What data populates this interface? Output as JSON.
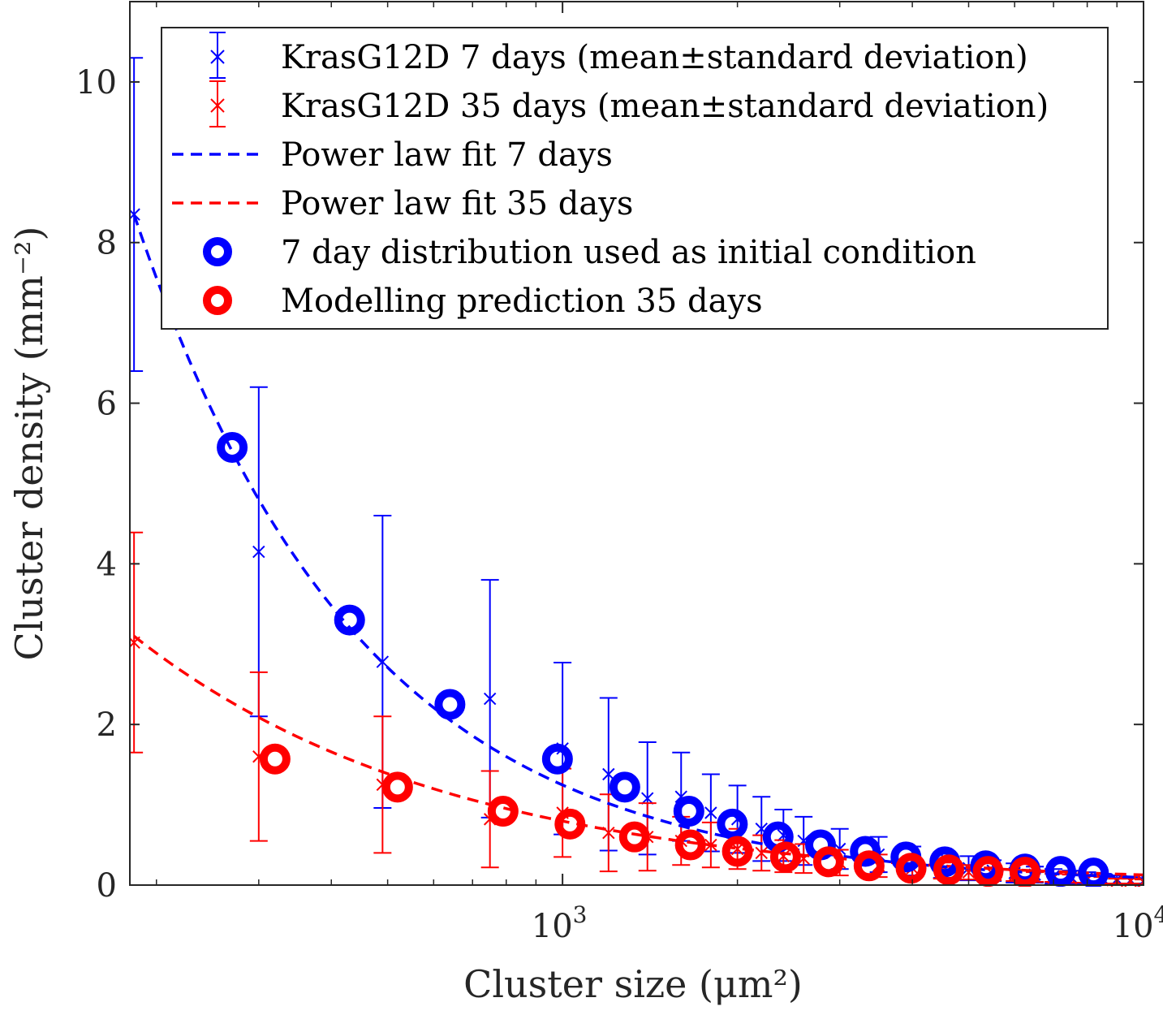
{
  "chart_data": {
    "type": "scatter",
    "title": "",
    "xlabel": "Cluster size (μm²)",
    "ylabel": "Cluster density (mm⁻²)",
    "xscale": "log",
    "xlim": [
      180,
      10000
    ],
    "ylim": [
      0,
      11
    ],
    "grid": false,
    "legend_position": "top-right",
    "x_ticks": [
      {
        "value": 1000,
        "base": "10",
        "exp": "3"
      },
      {
        "value": 10000,
        "base": "10",
        "exp": "4"
      }
    ],
    "y_ticks": [
      {
        "value": 0,
        "label": "0"
      },
      {
        "value": 2,
        "label": "2"
      },
      {
        "value": 4,
        "label": "4"
      },
      {
        "value": 6,
        "label": "6"
      },
      {
        "value": 8,
        "label": "8"
      },
      {
        "value": 10,
        "label": "10"
      }
    ],
    "series": [
      {
        "name": "KrasG12D 7 days (mean±standard deviation)",
        "kind": "errorbar",
        "color": "#0000ff",
        "x": [
          183,
          300,
          490,
          750,
          1000,
          1200,
          1400,
          1600,
          1800,
          2000,
          2200,
          2400,
          2600,
          3000,
          3500,
          4000,
          4500,
          5000,
          5500,
          6000,
          6500,
          7000,
          7500,
          8000,
          8500,
          9000,
          9500,
          10000
        ],
        "y": [
          8.35,
          4.15,
          2.78,
          2.32,
          1.7,
          1.38,
          1.08,
          1.1,
          0.9,
          0.82,
          0.7,
          0.62,
          0.55,
          0.45,
          0.38,
          0.3,
          0.25,
          0.21,
          0.18,
          0.15,
          0.13,
          0.11,
          0.1,
          0.09,
          0.08,
          0.07,
          0.06,
          0.05
        ],
        "err": [
          1.95,
          2.05,
          1.82,
          1.48,
          1.07,
          0.95,
          0.7,
          0.55,
          0.48,
          0.42,
          0.4,
          0.32,
          0.3,
          0.25,
          0.22,
          0.18,
          0.16,
          0.15,
          0.13,
          0.12,
          0.1,
          0.09,
          0.08,
          0.07,
          0.06,
          0.05,
          0.04,
          0.03
        ]
      },
      {
        "name": "KrasG12D 35 days (mean±standard deviation)",
        "kind": "errorbar",
        "color": "#ff0000",
        "x": [
          183,
          300,
          490,
          750,
          1000,
          1200,
          1400,
          1600,
          1800,
          2000,
          2200,
          2400,
          2600,
          3000,
          3500,
          4000,
          4500,
          5000,
          5500,
          6000,
          6500,
          7000,
          7500,
          8000,
          8500,
          9000,
          9500,
          10000
        ],
        "y": [
          3.02,
          1.6,
          1.25,
          0.82,
          0.9,
          0.65,
          0.6,
          0.55,
          0.5,
          0.45,
          0.4,
          0.36,
          0.33,
          0.28,
          0.24,
          0.21,
          0.18,
          0.16,
          0.14,
          0.12,
          0.1,
          0.09,
          0.08,
          0.07,
          0.06,
          0.05,
          0.05,
          0.04
        ],
        "err": [
          1.37,
          1.05,
          0.85,
          0.6,
          0.55,
          0.48,
          0.42,
          0.3,
          0.28,
          0.25,
          0.22,
          0.2,
          0.18,
          0.16,
          0.14,
          0.12,
          0.1,
          0.09,
          0.08,
          0.07,
          0.06,
          0.05,
          0.05,
          0.04,
          0.04,
          0.03,
          0.03,
          0.03
        ]
      },
      {
        "name": "Power law fit 7 days",
        "kind": "fit",
        "color": "#0000ff",
        "a": 8.35,
        "x0": 183,
        "b": 1.12
      },
      {
        "name": "Power law fit 35 days",
        "kind": "fit",
        "color": "#ff0000",
        "a": 3.1,
        "x0": 183,
        "b": 0.8
      },
      {
        "name": "7 day distribution used as initial condition",
        "kind": "circle",
        "color": "#0000ff",
        "x": [
          270,
          430,
          640,
          980,
          1280,
          1650,
          1960,
          2350,
          2780,
          3320,
          3900,
          4550,
          5350,
          6250,
          7200,
          8200
        ],
        "y": [
          5.45,
          3.3,
          2.25,
          1.57,
          1.22,
          0.92,
          0.76,
          0.6,
          0.5,
          0.42,
          0.35,
          0.29,
          0.24,
          0.2,
          0.17,
          0.15
        ]
      },
      {
        "name": "Modelling prediction 35 days",
        "kind": "circle",
        "color": "#ff0000",
        "x": [
          320,
          520,
          790,
          1030,
          1330,
          1660,
          2000,
          2420,
          2870,
          3370,
          3980,
          4620,
          5400,
          6250
        ],
        "y": [
          1.57,
          1.22,
          0.92,
          0.76,
          0.6,
          0.5,
          0.42,
          0.35,
          0.29,
          0.24,
          0.21,
          0.19,
          0.17,
          0.16
        ]
      }
    ]
  }
}
